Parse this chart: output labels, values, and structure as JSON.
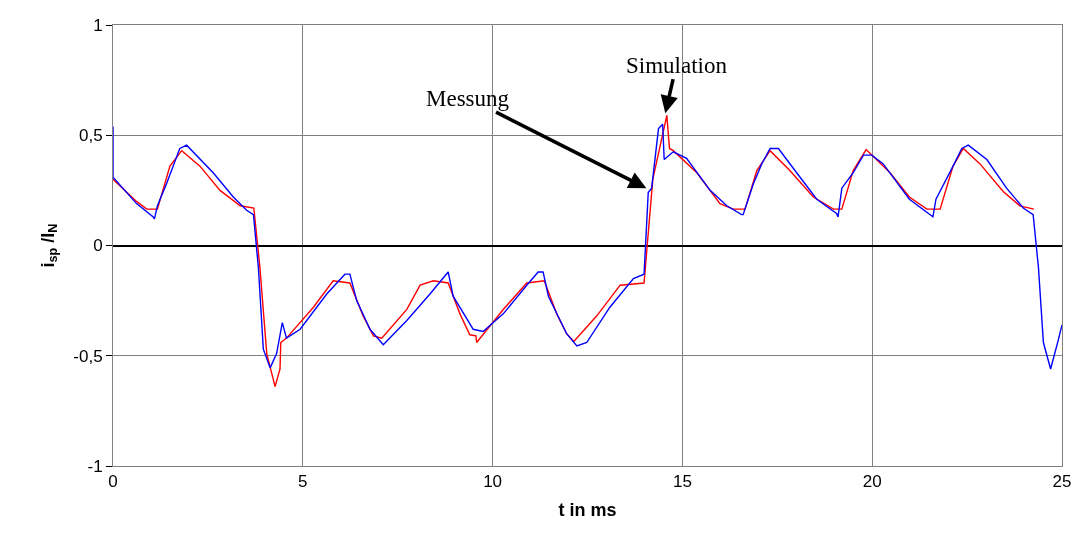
{
  "chart_data": {
    "type": "line",
    "xlabel": "t in ms",
    "ylabel": "i$_{sp}$ /I$_{N}$",
    "xlim": [
      0,
      25
    ],
    "xticks": [
      0,
      5,
      10,
      15,
      20,
      25
    ],
    "ylim": [
      -1,
      1
    ],
    "yticks": [
      {
        "value": -1,
        "label": "-1"
      },
      {
        "value": -0.5,
        "label": "-0,5"
      },
      0,
      {
        "value": 0.5,
        "label": "0,5"
      },
      1
    ],
    "grid": true,
    "line_style": "solid",
    "annotations": [
      {
        "text": "Messung",
        "x": 14.05,
        "y": 0.26
      },
      {
        "text": "Simulation",
        "x": 14.55,
        "y": 0.6
      }
    ],
    "series": [
      {
        "color": "#ff0000",
        "x": [
          0,
          0.62,
          0.89,
          1.17,
          1.5,
          1.81,
          2.29,
          2.82,
          3.35,
          3.71,
          3.87,
          4.05,
          4.27,
          4.4,
          4.42,
          4.57,
          5.28,
          5.8,
          6.24,
          6.59,
          6.86,
          7.08,
          7.74,
          8.09,
          8.44,
          8.83,
          9.14,
          9.4,
          9.56,
          9.58,
          10.28,
          10.9,
          11.36,
          11.69,
          11.95,
          12.14,
          12.74,
          13.36,
          13.99,
          14.22,
          14.59,
          14.66,
          14.76,
          15.38,
          15.99,
          16.34,
          16.65,
          16.96,
          17.31,
          17.83,
          18.45,
          18.98,
          19.2,
          19.5,
          19.84,
          19.99,
          20.47,
          20.98,
          21.44,
          21.79,
          22.13,
          22.4,
          22.84,
          23.45,
          23.89,
          24.26
        ],
        "values": [
          0.3,
          0.2,
          0.165,
          0.165,
          0.36,
          0.43,
          0.36,
          0.25,
          0.18,
          0.17,
          -0.1,
          -0.49,
          -0.64,
          -0.56,
          -0.44,
          -0.42,
          -0.28,
          -0.16,
          -0.17,
          -0.32,
          -0.41,
          -0.42,
          -0.29,
          -0.18,
          -0.16,
          -0.17,
          -0.31,
          -0.405,
          -0.41,
          -0.44,
          -0.29,
          -0.17,
          -0.16,
          -0.31,
          -0.4,
          -0.435,
          -0.32,
          -0.18,
          -0.17,
          0.3,
          0.59,
          0.44,
          0.43,
          0.33,
          0.19,
          0.165,
          0.165,
          0.34,
          0.43,
          0.34,
          0.22,
          0.165,
          0.165,
          0.34,
          0.435,
          0.41,
          0.33,
          0.22,
          0.165,
          0.165,
          0.36,
          0.44,
          0.37,
          0.245,
          0.18,
          0.165
        ]
      },
      {
        "color": "#0000ff",
        "x": [
          0,
          0,
          0.62,
          1.06,
          1.09,
          1.17,
          1.41,
          1.76,
          1.94,
          2.64,
          3.17,
          3.52,
          3.7,
          3.83,
          3.96,
          4.14,
          4.31,
          4.46,
          4.57,
          4.93,
          5.63,
          6.11,
          6.24,
          6.42,
          6.77,
          7.12,
          7.74,
          8.35,
          8.83,
          8.96,
          9.49,
          9.75,
          10.28,
          10.9,
          11.2,
          11.33,
          11.47,
          11.95,
          12.22,
          12.48,
          13.09,
          13.71,
          13.99,
          14.1,
          14.19,
          14.37,
          14.48,
          14.52,
          14.76,
          15.11,
          15.73,
          16.17,
          16.56,
          16.6,
          16.87,
          17.09,
          17.31,
          17.53,
          18.01,
          18.54,
          19.06,
          19.1,
          19.2,
          19.5,
          19.77,
          19.99,
          20.29,
          20.98,
          21.6,
          21.68,
          22.13,
          22.36,
          22.53,
          23.02,
          23.54,
          23.98,
          24.24,
          24.38,
          24.51,
          24.7,
          24.9,
          25
        ],
        "values": [
          0.54,
          0.31,
          0.19,
          0.13,
          0.12,
          0.18,
          0.28,
          0.44,
          0.455,
          0.33,
          0.22,
          0.16,
          0.14,
          -0.1,
          -0.47,
          -0.555,
          -0.49,
          -0.35,
          -0.42,
          -0.38,
          -0.22,
          -0.13,
          -0.13,
          -0.25,
          -0.38,
          -0.45,
          -0.34,
          -0.22,
          -0.12,
          -0.23,
          -0.38,
          -0.39,
          -0.31,
          -0.18,
          -0.12,
          -0.12,
          -0.23,
          -0.4,
          -0.455,
          -0.44,
          -0.28,
          -0.15,
          -0.13,
          0.24,
          0.26,
          0.53,
          0.55,
          0.39,
          0.425,
          0.395,
          0.25,
          0.18,
          0.14,
          0.14,
          0.28,
          0.37,
          0.44,
          0.44,
          0.33,
          0.21,
          0.145,
          0.13,
          0.26,
          0.33,
          0.41,
          0.41,
          0.37,
          0.21,
          0.13,
          0.21,
          0.36,
          0.44,
          0.455,
          0.39,
          0.26,
          0.17,
          0.14,
          -0.1,
          -0.44,
          -0.56,
          -0.43,
          -0.36
        ]
      }
    ]
  }
}
